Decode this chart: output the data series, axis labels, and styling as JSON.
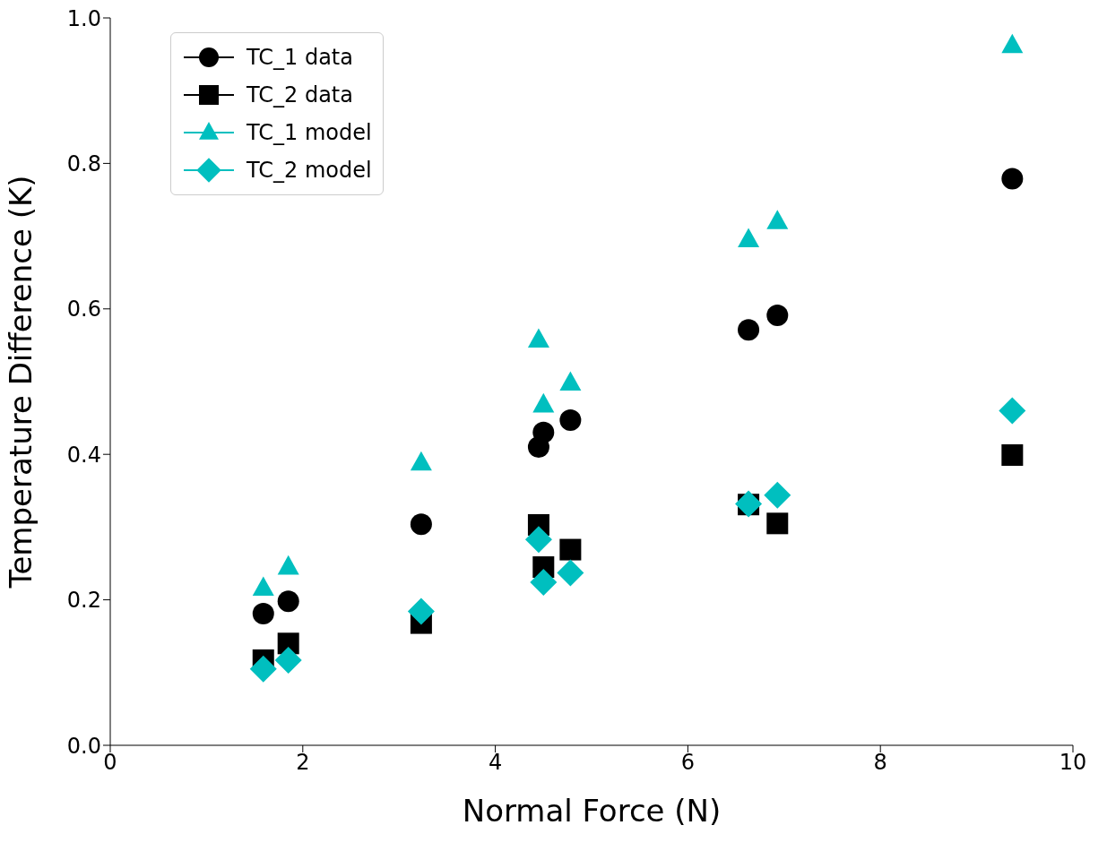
{
  "chart_data": {
    "type": "scatter",
    "xlabel": "Normal Force (N)",
    "ylabel": "Temperature Difference (K)",
    "x": [
      1.59,
      1.85,
      3.23,
      4.45,
      4.5,
      4.78,
      6.63,
      6.93,
      9.37
    ],
    "series": [
      {
        "name": "TC_1 data",
        "color": "#000000",
        "marker": "circle",
        "values": [
          0.181,
          0.198,
          0.304,
          0.41,
          0.43,
          0.447,
          0.571,
          0.591,
          0.779
        ]
      },
      {
        "name": "TC_2 data",
        "color": "#000000",
        "marker": "square",
        "values": [
          0.117,
          0.14,
          0.168,
          0.303,
          0.245,
          0.269,
          0.331,
          0.305,
          0.399
        ]
      },
      {
        "name": "TC_1 model",
        "color": "#00bfbf",
        "marker": "triangle",
        "values": [
          0.216,
          0.245,
          0.388,
          0.557,
          0.468,
          0.498,
          0.695,
          0.72,
          0.962
        ]
      },
      {
        "name": "TC_2 model",
        "color": "#00bfbf",
        "marker": "diamond",
        "values": [
          0.105,
          0.117,
          0.184,
          0.283,
          0.224,
          0.237,
          0.332,
          0.344,
          0.46
        ]
      }
    ],
    "xlim": [
      0,
      10
    ],
    "xticks": [
      0,
      2,
      4,
      6,
      8,
      10
    ],
    "ylim": [
      0,
      1.0
    ],
    "yticks": [
      {
        "value": 0,
        "label": "0.0"
      },
      {
        "value": 0.2,
        "label": "0.2"
      },
      {
        "value": 0.4,
        "label": "0.4"
      },
      {
        "value": 0.6,
        "label": "0.6"
      },
      {
        "value": 0.8,
        "label": "0.8"
      },
      {
        "value": 1.0,
        "label": "1.0"
      }
    ],
    "grid": false,
    "legend": "top left"
  }
}
